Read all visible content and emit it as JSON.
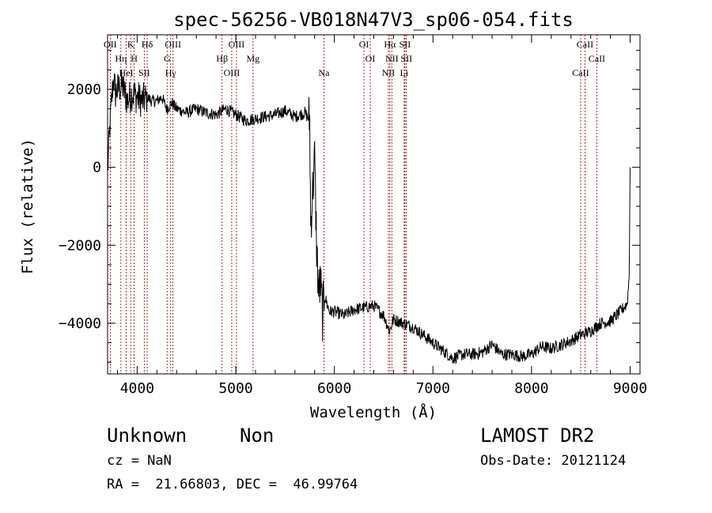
{
  "chart_data": {
    "type": "line",
    "title": "spec-56256-VB018N47V3_sp06-054.fits",
    "xlabel": "Wavelength (Å)",
    "ylabel": "Flux (relative)",
    "xlim": [
      3700,
      9100
    ],
    "ylim": [
      -5300,
      3400
    ],
    "xticks": [
      4000,
      5000,
      6000,
      7000,
      8000,
      9000
    ],
    "xtick_labels": [
      "4000",
      "5000",
      "6000",
      "7000",
      "8000",
      "9000"
    ],
    "yticks": [
      2000,
      0,
      -2000,
      -4000
    ],
    "ytick_labels": [
      "2000",
      "0",
      "−2000",
      "−4000"
    ],
    "grid": false,
    "series": [
      {
        "color": "#000000",
        "x": [
          3700,
          3720,
          3740,
          3760,
          3780,
          3800,
          3850,
          3900,
          3950,
          4000,
          4050,
          4100,
          4150,
          4200,
          4250,
          4300,
          4350,
          4400,
          4450,
          4500,
          4600,
          4700,
          4800,
          4900,
          5000,
          5100,
          5200,
          5300,
          5400,
          5500,
          5600,
          5700,
          5750,
          5760,
          5780,
          5800,
          5820,
          5840,
          5860,
          5880,
          5900,
          5950,
          6000,
          6100,
          6200,
          6300,
          6400,
          6500,
          6560,
          6600,
          6700,
          6800,
          6900,
          7000,
          7100,
          7200,
          7300,
          7400,
          7500,
          7600,
          7700,
          7800,
          7900,
          8000,
          8100,
          8200,
          8300,
          8400,
          8500,
          8600,
          8700,
          8800,
          8900,
          8970,
          8990,
          9000
        ],
        "y": [
          -100,
          900,
          1700,
          2300,
          1900,
          2000,
          2100,
          1700,
          1900,
          1800,
          1700,
          1800,
          1700,
          1700,
          1800,
          1500,
          1650,
          1500,
          1450,
          1400,
          1500,
          1400,
          1350,
          1500,
          1350,
          1200,
          1250,
          1300,
          1350,
          1450,
          1300,
          1400,
          1200,
          -1500,
          -600,
          200,
          -2000,
          -3200,
          -3000,
          -3800,
          -3300,
          -3700,
          -3700,
          -3800,
          -3650,
          -3600,
          -3550,
          -3800,
          -4200,
          -3900,
          -4000,
          -4100,
          -4300,
          -4500,
          -4700,
          -4900,
          -4800,
          -4800,
          -4750,
          -4550,
          -4800,
          -4800,
          -4850,
          -4800,
          -4600,
          -4650,
          -4550,
          -4450,
          -4300,
          -4200,
          -4000,
          -3950,
          -3700,
          -3500,
          -2800,
          0
        ]
      }
    ],
    "lines": [
      {
        "x": 3727,
        "labels": [
          "OII"
        ]
      },
      {
        "x": 3835,
        "labels": [
          "Hη"
        ]
      },
      {
        "x": 3889,
        "labels": [
          "HeI"
        ]
      },
      {
        "x": 3934,
        "labels": [
          "K"
        ]
      },
      {
        "x": 3969,
        "labels": [
          "H"
        ]
      },
      {
        "x": 4072,
        "labels": [
          "SII"
        ]
      },
      {
        "x": 4102,
        "labels": [
          "Hδ"
        ]
      },
      {
        "x": 4304,
        "labels": [
          "G"
        ]
      },
      {
        "x": 4340,
        "labels": [
          "Hγ"
        ]
      },
      {
        "x": 4363,
        "labels": [
          "OIII"
        ]
      },
      {
        "x": 4861,
        "labels": [
          "Hβ"
        ]
      },
      {
        "x": 4959,
        "labels": [
          "OIII"
        ]
      },
      {
        "x": 5007,
        "labels": [
          "OIII"
        ]
      },
      {
        "x": 5175,
        "labels": [
          "Mg"
        ]
      },
      {
        "x": 5894,
        "labels": [
          "Na"
        ]
      },
      {
        "x": 6300,
        "labels": [
          "OI"
        ]
      },
      {
        "x": 6364,
        "labels": [
          "OI"
        ]
      },
      {
        "x": 6548,
        "labels": [
          "NII"
        ]
      },
      {
        "x": 6563,
        "labels": [
          "Hα"
        ]
      },
      {
        "x": 6583,
        "labels": [
          "NII"
        ]
      },
      {
        "x": 6708,
        "labels": [
          "Li"
        ]
      },
      {
        "x": 6716,
        "labels": [
          "SII"
        ]
      },
      {
        "x": 6731,
        "labels": [
          "SII"
        ]
      },
      {
        "x": 8498,
        "labels": [
          "CaII"
        ]
      },
      {
        "x": 8542,
        "labels": [
          "CaII"
        ]
      },
      {
        "x": 8662,
        "labels": [
          "CaII"
        ]
      }
    ],
    "line_color": "#8b0000"
  },
  "footer": {
    "class_label": "Unknown",
    "subclass_label": "Non",
    "survey": "LAMOST DR2",
    "cz": "cz = NaN",
    "obs_date": "Obs-Date: 20121124",
    "coords": "RA =  21.66803, DEC =  46.99764"
  }
}
